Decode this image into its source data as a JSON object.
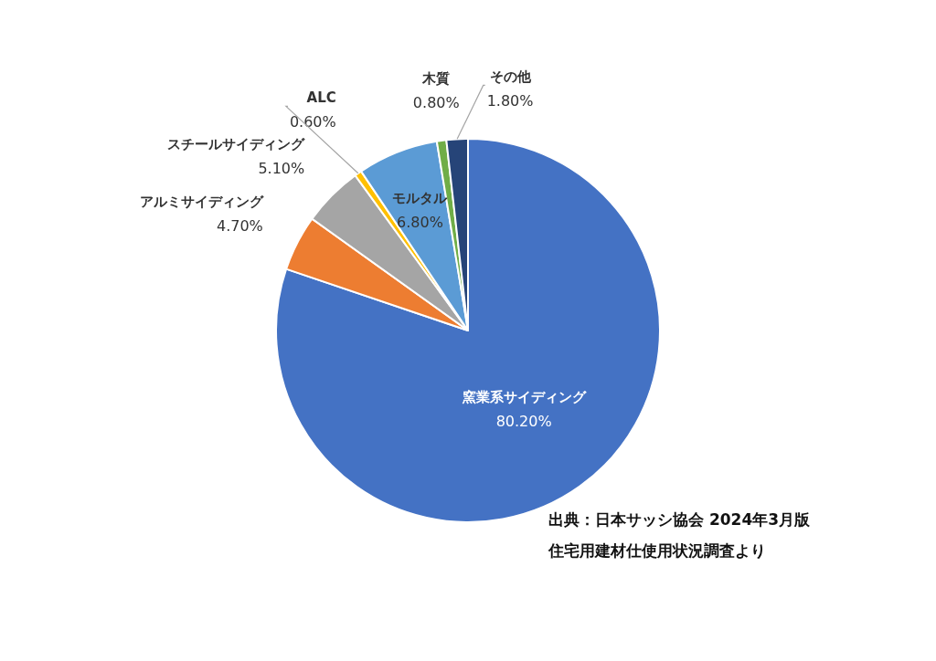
{
  "chart_data": {
    "type": "pie",
    "categories": [
      "窯業系サイディング",
      "アルミサイディング",
      "スチールサイディング",
      "ALC",
      "モルタル",
      "木質",
      "その他"
    ],
    "values": [
      80.2,
      4.7,
      5.1,
      0.6,
      6.8,
      0.8,
      1.8
    ],
    "value_labels": [
      "80.20%",
      "4.70%",
      "5.10%",
      "0.60%",
      "6.80%",
      "0.80%",
      "1.80%"
    ],
    "colors": [
      "#4472c4",
      "#ed7d31",
      "#a5a5a5",
      "#ffc000",
      "#5b9bd5",
      "#70ad47",
      "#264478"
    ],
    "annotations": [
      "出典：日本サッシ協会 2024年3月版",
      "住宅用建材仕使用状況調査より"
    ]
  }
}
